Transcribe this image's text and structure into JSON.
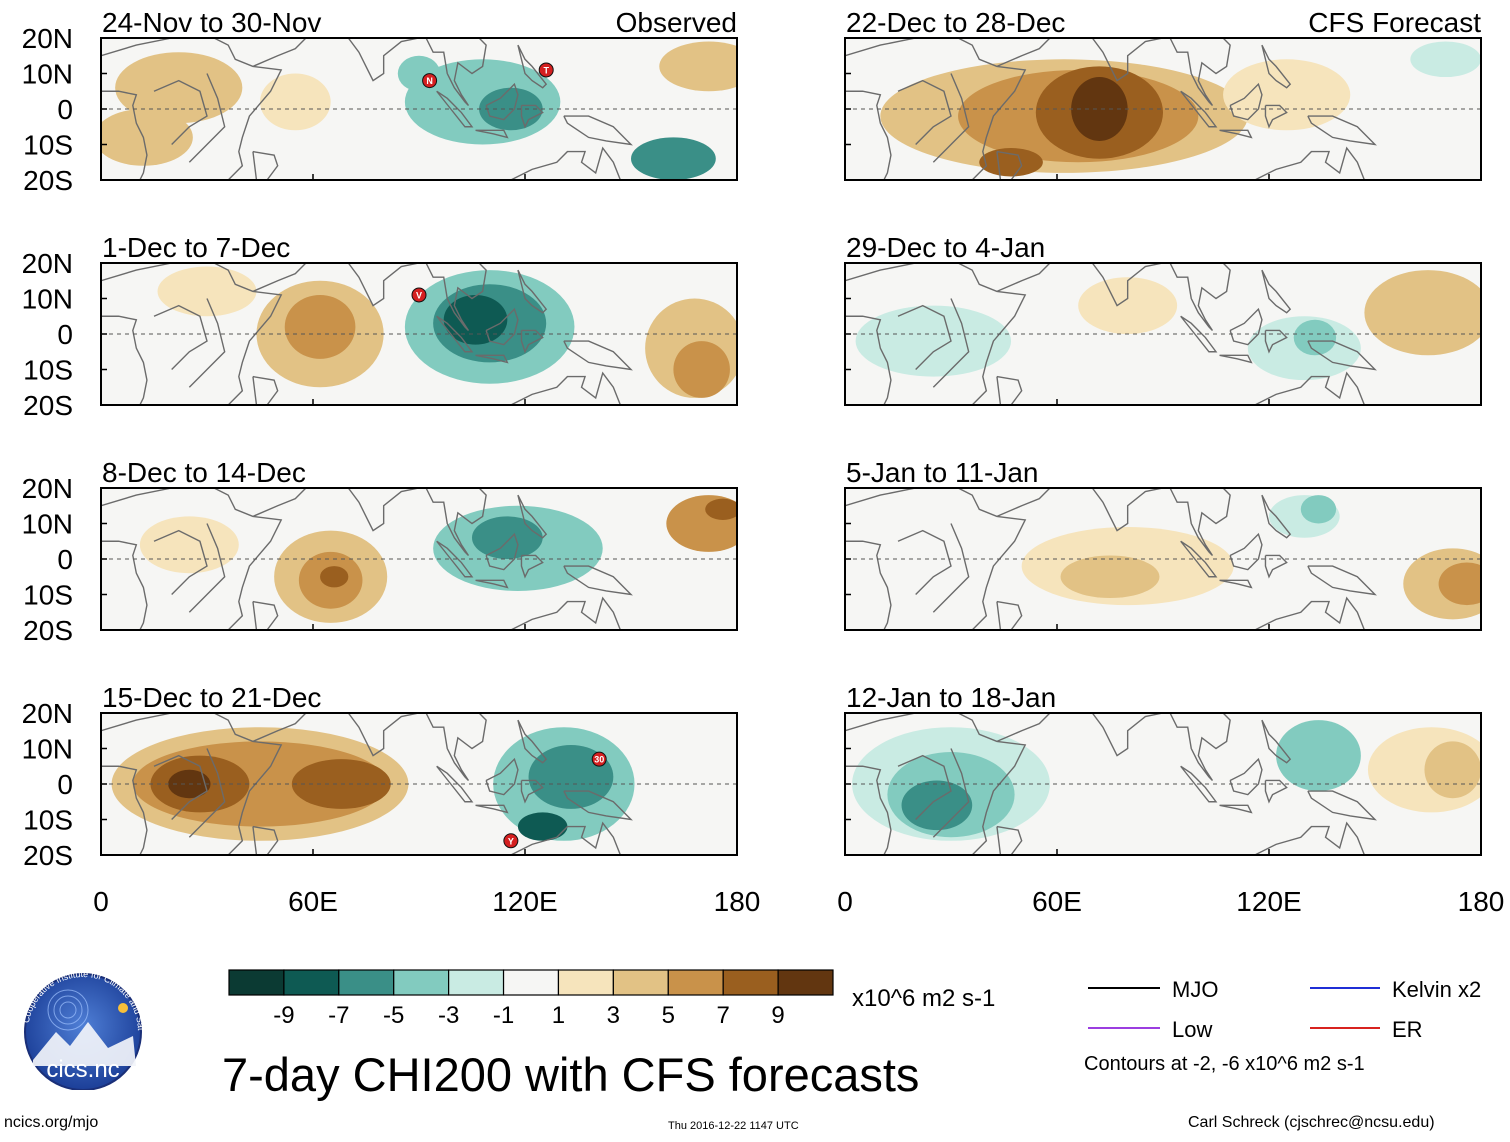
{
  "chart_data": {
    "type": "heatmap",
    "title": "7-day CHI200 with CFS forecasts",
    "units": "x10^6 m2 s-1",
    "observed_label": "Observed",
    "forecast_label": "CFS Forecast",
    "lat_ticks": [
      "20N",
      "10N",
      "0",
      "10S",
      "20S"
    ],
    "lon_ticks": [
      "0",
      "60E",
      "120E",
      "180"
    ],
    "lat_range": [
      -20,
      20
    ],
    "lon_range": [
      0,
      180
    ],
    "colorbar": {
      "levels": [
        "-9",
        "-7",
        "-5",
        "-3",
        "-1",
        "1",
        "3",
        "5",
        "7",
        "9"
      ],
      "colors": [
        "#0b3a33",
        "#0e5a53",
        "#3a8f87",
        "#82cbbf",
        "#c9ebe3",
        "#f6f6f4",
        "#f6e4bc",
        "#e2c285",
        "#c9924a",
        "#9a5f1f",
        "#623610"
      ]
    },
    "legend": {
      "items": [
        {
          "label": "MJO",
          "color": "#000000"
        },
        {
          "label": "Kelvin x2",
          "color": "#1f2ed6"
        },
        {
          "label": "Low",
          "color": "#9b3ee0"
        },
        {
          "label": "ER",
          "color": "#d8231f"
        }
      ],
      "note": "Contours at -2, -6 x10^6 m2 s-1"
    },
    "panels": [
      {
        "period": "24-Nov to 30-Nov",
        "column": "observed",
        "anomalies": [
          {
            "lon": 22,
            "lat": 6,
            "rx": 18,
            "ry": 10,
            "level": 3
          },
          {
            "lon": 12,
            "lat": -8,
            "rx": 14,
            "ry": 8,
            "level": 3
          },
          {
            "lon": 55,
            "lat": 2,
            "rx": 10,
            "ry": 8,
            "level": 1
          },
          {
            "lon": 108,
            "lat": 2,
            "rx": 22,
            "ry": 12,
            "level": -3
          },
          {
            "lon": 116,
            "lat": 0,
            "rx": 9,
            "ry": 6,
            "level": -5
          },
          {
            "lon": 162,
            "lat": -14,
            "rx": 12,
            "ry": 6,
            "level": -5
          },
          {
            "lon": 90,
            "lat": 10,
            "rx": 6,
            "ry": 5,
            "level": -3
          },
          {
            "lon": 172,
            "lat": 12,
            "rx": 14,
            "ry": 7,
            "level": 3
          }
        ],
        "storms": [
          {
            "label": "N",
            "lon": 93,
            "lat": 8
          },
          {
            "label": "T",
            "lon": 126,
            "lat": 11
          }
        ]
      },
      {
        "period": "22-Dec to 28-Dec",
        "column": "forecast",
        "anomalies": [
          {
            "lon": 62,
            "lat": -2,
            "rx": 52,
            "ry": 16,
            "level": 3
          },
          {
            "lon": 66,
            "lat": -2,
            "rx": 34,
            "ry": 13,
            "level": 5
          },
          {
            "lon": 72,
            "lat": -1,
            "rx": 18,
            "ry": 13,
            "level": 7
          },
          {
            "lon": 72,
            "lat": 0,
            "rx": 8,
            "ry": 9,
            "level": 9
          },
          {
            "lon": 47,
            "lat": -15,
            "rx": 9,
            "ry": 4,
            "level": 7
          },
          {
            "lon": 125,
            "lat": 4,
            "rx": 18,
            "ry": 10,
            "level": 1
          },
          {
            "lon": 170,
            "lat": 14,
            "rx": 10,
            "ry": 5,
            "level": -1
          }
        ],
        "storms": []
      },
      {
        "period": "1-Dec to 7-Dec",
        "column": "observed",
        "anomalies": [
          {
            "lon": 62,
            "lat": 0,
            "rx": 18,
            "ry": 15,
            "level": 3
          },
          {
            "lon": 62,
            "lat": 2,
            "rx": 10,
            "ry": 9,
            "level": 5
          },
          {
            "lon": 110,
            "lat": 2,
            "rx": 24,
            "ry": 16,
            "level": -3
          },
          {
            "lon": 110,
            "lat": 3,
            "rx": 16,
            "ry": 11,
            "level": -5
          },
          {
            "lon": 106,
            "lat": 4,
            "rx": 9,
            "ry": 7,
            "level": -7
          },
          {
            "lon": 30,
            "lat": 12,
            "rx": 14,
            "ry": 7,
            "level": 1
          },
          {
            "lon": 168,
            "lat": -4,
            "rx": 14,
            "ry": 14,
            "level": 3
          },
          {
            "lon": 170,
            "lat": -10,
            "rx": 8,
            "ry": 8,
            "level": 5
          }
        ],
        "storms": [
          {
            "label": "V",
            "lon": 90,
            "lat": 11
          }
        ]
      },
      {
        "period": "29-Dec to 4-Jan",
        "column": "forecast",
        "anomalies": [
          {
            "lon": 25,
            "lat": -2,
            "rx": 22,
            "ry": 10,
            "level": -1
          },
          {
            "lon": 130,
            "lat": -4,
            "rx": 16,
            "ry": 9,
            "level": -1
          },
          {
            "lon": 133,
            "lat": -1,
            "rx": 6,
            "ry": 5,
            "level": -3
          },
          {
            "lon": 165,
            "lat": 6,
            "rx": 18,
            "ry": 12,
            "level": 3
          },
          {
            "lon": 80,
            "lat": 8,
            "rx": 14,
            "ry": 8,
            "level": 1
          }
        ],
        "storms": []
      },
      {
        "period": "8-Dec to 14-Dec",
        "column": "observed",
        "anomalies": [
          {
            "lon": 65,
            "lat": -5,
            "rx": 16,
            "ry": 13,
            "level": 3
          },
          {
            "lon": 65,
            "lat": -6,
            "rx": 9,
            "ry": 8,
            "level": 5
          },
          {
            "lon": 66,
            "lat": -5,
            "rx": 4,
            "ry": 3,
            "level": 7
          },
          {
            "lon": 118,
            "lat": 3,
            "rx": 24,
            "ry": 12,
            "level": -3
          },
          {
            "lon": 115,
            "lat": 6,
            "rx": 10,
            "ry": 6,
            "level": -5
          },
          {
            "lon": 172,
            "lat": 10,
            "rx": 12,
            "ry": 8,
            "level": 5
          },
          {
            "lon": 176,
            "lat": 14,
            "rx": 5,
            "ry": 3,
            "level": 7
          },
          {
            "lon": 25,
            "lat": 4,
            "rx": 14,
            "ry": 8,
            "level": 1
          }
        ],
        "storms": []
      },
      {
        "period": "5-Jan to 11-Jan",
        "column": "forecast",
        "anomalies": [
          {
            "lon": 80,
            "lat": -2,
            "rx": 30,
            "ry": 11,
            "level": 1
          },
          {
            "lon": 75,
            "lat": -5,
            "rx": 14,
            "ry": 6,
            "level": 3
          },
          {
            "lon": 172,
            "lat": -7,
            "rx": 14,
            "ry": 10,
            "level": 3
          },
          {
            "lon": 176,
            "lat": -7,
            "rx": 8,
            "ry": 6,
            "level": 5
          },
          {
            "lon": 130,
            "lat": 12,
            "rx": 10,
            "ry": 6,
            "level": -1
          },
          {
            "lon": 134,
            "lat": 14,
            "rx": 5,
            "ry": 4,
            "level": -3
          }
        ],
        "storms": []
      },
      {
        "period": "15-Dec to 21-Dec",
        "column": "observed",
        "anomalies": [
          {
            "lon": 45,
            "lat": 0,
            "rx": 42,
            "ry": 16,
            "level": 3
          },
          {
            "lon": 45,
            "lat": 0,
            "rx": 36,
            "ry": 12,
            "level": 5
          },
          {
            "lon": 28,
            "lat": 0,
            "rx": 14,
            "ry": 8,
            "level": 7
          },
          {
            "lon": 68,
            "lat": 0,
            "rx": 14,
            "ry": 7,
            "level": 7
          },
          {
            "lon": 25,
            "lat": 0,
            "rx": 6,
            "ry": 4,
            "level": 9
          },
          {
            "lon": 131,
            "lat": 0,
            "rx": 20,
            "ry": 16,
            "level": -3
          },
          {
            "lon": 133,
            "lat": 2,
            "rx": 12,
            "ry": 9,
            "level": -5
          },
          {
            "lon": 125,
            "lat": -12,
            "rx": 7,
            "ry": 4,
            "level": -7
          }
        ],
        "storms": [
          {
            "label": "30",
            "lon": 141,
            "lat": 7
          },
          {
            "label": "Y",
            "lon": 116,
            "lat": -16
          }
        ]
      },
      {
        "period": "12-Jan to 18-Jan",
        "column": "forecast",
        "anomalies": [
          {
            "lon": 30,
            "lat": 0,
            "rx": 28,
            "ry": 16,
            "level": -1
          },
          {
            "lon": 30,
            "lat": -3,
            "rx": 18,
            "ry": 12,
            "level": -3
          },
          {
            "lon": 26,
            "lat": -6,
            "rx": 10,
            "ry": 7,
            "level": -5
          },
          {
            "lon": 134,
            "lat": 8,
            "rx": 12,
            "ry": 10,
            "level": -3
          },
          {
            "lon": 166,
            "lat": 4,
            "rx": 18,
            "ry": 12,
            "level": 1
          },
          {
            "lon": 172,
            "lat": 4,
            "rx": 8,
            "ry": 8,
            "level": 3
          }
        ],
        "storms": []
      }
    ]
  },
  "footer": {
    "title": "7-day CHI200 with CFS forecasts",
    "website": "ncics.org/mjo",
    "timestamp": "Thu 2016-12-22 1147 UTC",
    "credit": "Carl Schreck (cjschrec@ncsu.edu)",
    "logo_text": "cics.nc",
    "logo_ring_text": "Cooperative Institute for Climate and Satellites"
  }
}
